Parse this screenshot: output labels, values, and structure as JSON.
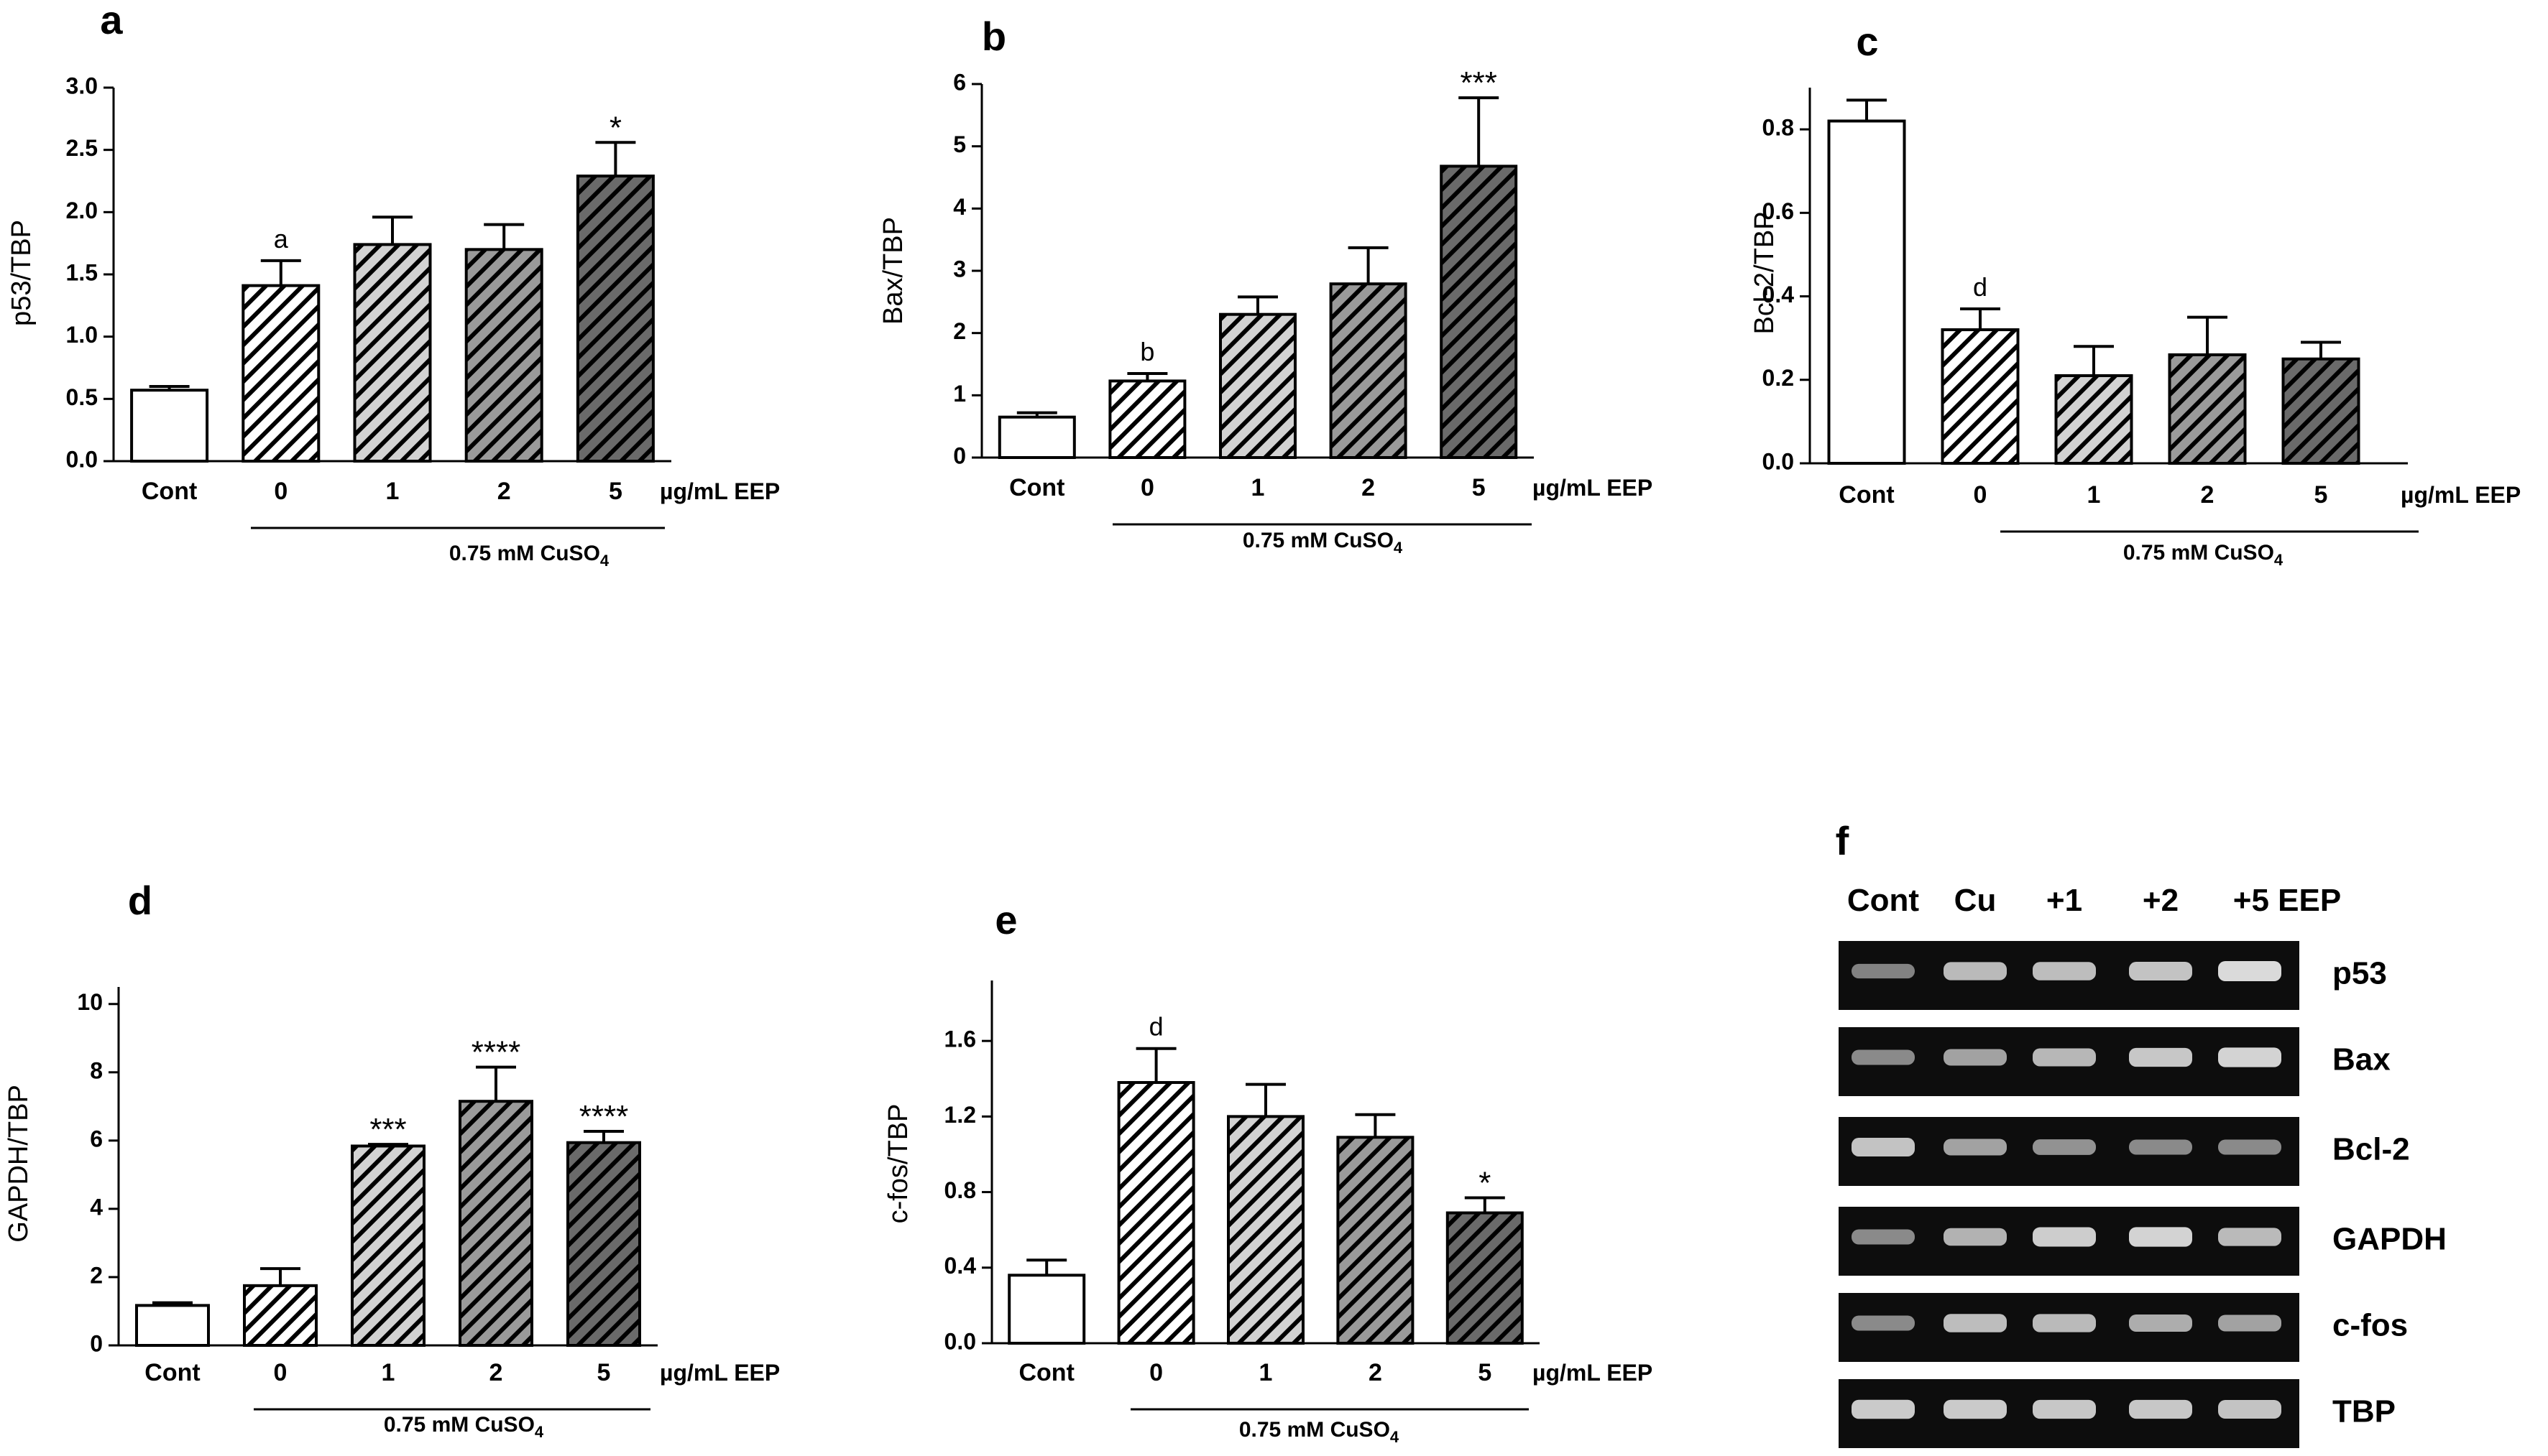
{
  "chart_data": [
    {
      "panel": "a",
      "type": "bar",
      "ylabel": "p53/TBP",
      "categories": [
        "Cont",
        "0",
        "1",
        "2",
        "5"
      ],
      "values": [
        0.57,
        1.41,
        1.74,
        1.7,
        2.29
      ],
      "errors": [
        0.03,
        0.2,
        0.22,
        0.2,
        0.27
      ],
      "ylim": [
        0,
        3.0
      ],
      "ticks": [
        "0.0",
        "0.5",
        "1.0",
        "1.5",
        "2.0",
        "2.5",
        "3.0"
      ],
      "annotations": [
        "",
        "a",
        "",
        "",
        "*"
      ],
      "unit_label": "µg/mL EEP",
      "treatment_label": "0.75 mM CuSO",
      "treatment_sub": "4"
    },
    {
      "panel": "b",
      "type": "bar",
      "ylabel": "Bax/TBP",
      "categories": [
        "Cont",
        "0",
        "1",
        "2",
        "5"
      ],
      "values": [
        0.65,
        1.23,
        2.3,
        2.79,
        4.68
      ],
      "errors": [
        0.07,
        0.12,
        0.28,
        0.58,
        1.1
      ],
      "ylim": [
        0,
        6
      ],
      "ticks": [
        "0",
        "1",
        "2",
        "3",
        "4",
        "5",
        "6"
      ],
      "annotations": [
        "",
        "b",
        "",
        "",
        "***"
      ],
      "unit_label": "µg/mL EEP",
      "treatment_label": "0.75 mM CuSO",
      "treatment_sub": "4"
    },
    {
      "panel": "c",
      "type": "bar",
      "ylabel": "Bcl-2/TBP",
      "categories": [
        "Cont",
        "0",
        "1",
        "2",
        "5"
      ],
      "values": [
        0.82,
        0.32,
        0.21,
        0.26,
        0.25
      ],
      "errors": [
        0.05,
        0.05,
        0.07,
        0.09,
        0.04
      ],
      "ylim": [
        0,
        0.9
      ],
      "ticks": [
        "0.0",
        "0.2",
        "0.4",
        "0.6",
        "0.8"
      ],
      "annotations": [
        "",
        "d",
        "",
        "",
        ""
      ],
      "unit_label": "µg/mL EEP",
      "treatment_label": "0.75 mM CuSO",
      "treatment_sub": "4"
    },
    {
      "panel": "d",
      "type": "bar",
      "ylabel": "GAPDH/TBP",
      "categories": [
        "Cont",
        "0",
        "1",
        "2",
        "5"
      ],
      "values": [
        1.17,
        1.75,
        5.84,
        7.15,
        5.94
      ],
      "errors": [
        0.08,
        0.5,
        0.05,
        1.0,
        0.33
      ],
      "ylim": [
        0,
        10.5
      ],
      "ticks": [
        "0",
        "2",
        "4",
        "6",
        "8",
        "10"
      ],
      "annotations": [
        "",
        "",
        "***",
        "****",
        "****"
      ],
      "unit_label": "µg/mL EEP",
      "treatment_label": "0.75 mM CuSO",
      "treatment_sub": "4"
    },
    {
      "panel": "e",
      "type": "bar",
      "ylabel": "c-fos/TBP",
      "categories": [
        "Cont",
        "0",
        "1",
        "2",
        "5"
      ],
      "values": [
        0.36,
        1.38,
        1.2,
        1.09,
        0.69
      ],
      "errors": [
        0.08,
        0.18,
        0.17,
        0.12,
        0.08
      ],
      "ylim": [
        0,
        1.92
      ],
      "ticks": [
        "0.0",
        "0.4",
        "0.8",
        "1.2",
        "1.6"
      ],
      "annotations": [
        "",
        "d",
        "",
        "",
        "*"
      ],
      "unit_label": "µg/mL EEP",
      "treatment_label": "0.75 mM CuSO",
      "treatment_sub": "4"
    }
  ],
  "gel": {
    "panel": "f",
    "columns": [
      "Cont",
      "Cu",
      "+1",
      "+2",
      "+5 EEP"
    ],
    "rows": [
      {
        "label": "p53",
        "intensity": [
          0.45,
          0.8,
          0.82,
          0.85,
          1.0
        ]
      },
      {
        "label": "Bax",
        "intensity": [
          0.5,
          0.65,
          0.78,
          0.88,
          0.95
        ]
      },
      {
        "label": "Bcl-2",
        "intensity": [
          0.85,
          0.65,
          0.55,
          0.5,
          0.5
        ]
      },
      {
        "label": "GAPDH",
        "intensity": [
          0.5,
          0.75,
          0.92,
          0.95,
          0.8
        ]
      },
      {
        "label": "c-fos",
        "intensity": [
          0.5,
          0.82,
          0.8,
          0.72,
          0.65
        ]
      },
      {
        "label": "TBP",
        "intensity": [
          0.9,
          0.9,
          0.88,
          0.88,
          0.86
        ]
      }
    ]
  }
}
